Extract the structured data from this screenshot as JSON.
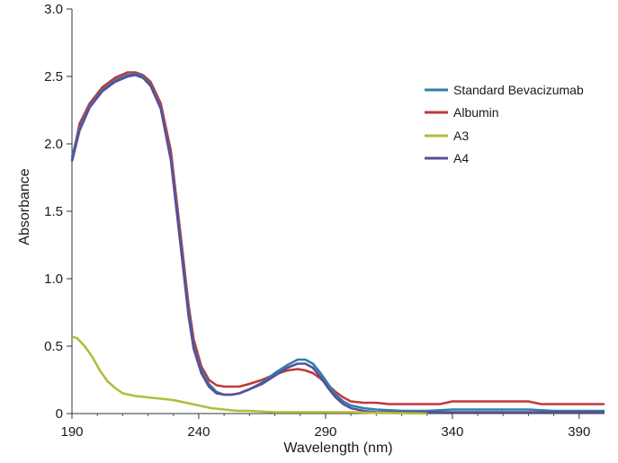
{
  "chart_data": {
    "type": "line",
    "title": "",
    "xlabel": "Wavelength (nm)",
    "ylabel": "Absorbance",
    "xlim": [
      190,
      400
    ],
    "ylim": [
      0,
      3.0
    ],
    "x_ticks": [
      190,
      240,
      290,
      340,
      390
    ],
    "x_tick_labels": [
      "190",
      "240",
      "290",
      "340",
      "390"
    ],
    "y_ticks": [
      0,
      0.5,
      1.0,
      1.5,
      2.0,
      2.5,
      3.0
    ],
    "y_tick_labels": [
      "0",
      "0.5",
      "1.0",
      "1.5",
      "2.0",
      "2.5",
      "3.0"
    ],
    "grid": false,
    "legend_position": "top-right",
    "series": [
      {
        "name": "Standard Bevacizumab",
        "color": "#2e7fa8",
        "x": [
          190,
          193,
          197,
          202,
          207,
          212,
          215,
          218,
          221,
          225,
          229,
          233,
          236,
          238,
          241,
          244,
          247,
          250,
          253,
          256,
          260,
          265,
          270,
          275,
          279,
          282,
          285,
          288,
          291,
          294,
          297,
          300,
          305,
          310,
          320,
          330,
          340,
          350,
          360,
          370,
          380,
          390,
          400
        ],
        "y": [
          1.9,
          2.12,
          2.28,
          2.4,
          2.47,
          2.51,
          2.52,
          2.5,
          2.44,
          2.27,
          1.9,
          1.25,
          0.75,
          0.5,
          0.32,
          0.22,
          0.16,
          0.14,
          0.14,
          0.15,
          0.18,
          0.23,
          0.3,
          0.36,
          0.4,
          0.4,
          0.37,
          0.3,
          0.22,
          0.14,
          0.09,
          0.06,
          0.04,
          0.03,
          0.02,
          0.02,
          0.03,
          0.03,
          0.03,
          0.03,
          0.02,
          0.02,
          0.02
        ]
      },
      {
        "name": "Albumin",
        "color": "#c0393b",
        "x": [
          190,
          193,
          197,
          202,
          207,
          212,
          215,
          218,
          221,
          225,
          229,
          233,
          236,
          238,
          241,
          244,
          247,
          250,
          253,
          256,
          260,
          265,
          270,
          275,
          279,
          282,
          285,
          288,
          291,
          294,
          297,
          300,
          305,
          310,
          315,
          320,
          325,
          330,
          335,
          340,
          345,
          350,
          355,
          360,
          365,
          370,
          375,
          380,
          390,
          400
        ],
        "y": [
          1.88,
          2.15,
          2.3,
          2.42,
          2.49,
          2.53,
          2.53,
          2.51,
          2.46,
          2.3,
          1.95,
          1.3,
          0.8,
          0.55,
          0.35,
          0.25,
          0.21,
          0.2,
          0.2,
          0.2,
          0.22,
          0.25,
          0.29,
          0.32,
          0.33,
          0.32,
          0.3,
          0.26,
          0.21,
          0.16,
          0.12,
          0.09,
          0.08,
          0.08,
          0.07,
          0.07,
          0.07,
          0.07,
          0.07,
          0.09,
          0.09,
          0.09,
          0.09,
          0.09,
          0.09,
          0.09,
          0.07,
          0.07,
          0.07,
          0.07
        ]
      },
      {
        "name": "A3",
        "color": "#b4bb3f",
        "x": [
          190,
          192,
          195,
          198,
          201,
          204,
          207,
          210,
          215,
          220,
          225,
          230,
          235,
          240,
          245,
          250,
          255,
          260,
          270,
          280,
          290,
          300,
          310,
          320,
          330
        ],
        "y": [
          0.57,
          0.56,
          0.5,
          0.42,
          0.32,
          0.24,
          0.19,
          0.15,
          0.13,
          0.12,
          0.11,
          0.1,
          0.08,
          0.06,
          0.04,
          0.03,
          0.02,
          0.02,
          0.01,
          0.01,
          0.01,
          0.01,
          0.005,
          0.003,
          0.0
        ]
      },
      {
        "name": "A4",
        "color": "#5a4f97",
        "x": [
          190,
          193,
          197,
          202,
          207,
          212,
          215,
          218,
          221,
          225,
          229,
          233,
          236,
          238,
          241,
          244,
          247,
          250,
          253,
          256,
          260,
          265,
          270,
          275,
          279,
          282,
          285,
          288,
          291,
          294,
          297,
          300,
          305,
          310,
          320,
          330,
          340,
          350,
          360,
          370,
          380,
          390,
          400
        ],
        "y": [
          1.87,
          2.1,
          2.27,
          2.39,
          2.46,
          2.5,
          2.51,
          2.49,
          2.43,
          2.26,
          1.88,
          1.22,
          0.72,
          0.48,
          0.3,
          0.2,
          0.15,
          0.14,
          0.14,
          0.15,
          0.18,
          0.22,
          0.28,
          0.34,
          0.37,
          0.37,
          0.34,
          0.27,
          0.19,
          0.12,
          0.07,
          0.04,
          0.02,
          0.01,
          0.01,
          0.01,
          0.01,
          0.01,
          0.01,
          0.01,
          0.01,
          0.01,
          0.01
        ]
      }
    ]
  }
}
